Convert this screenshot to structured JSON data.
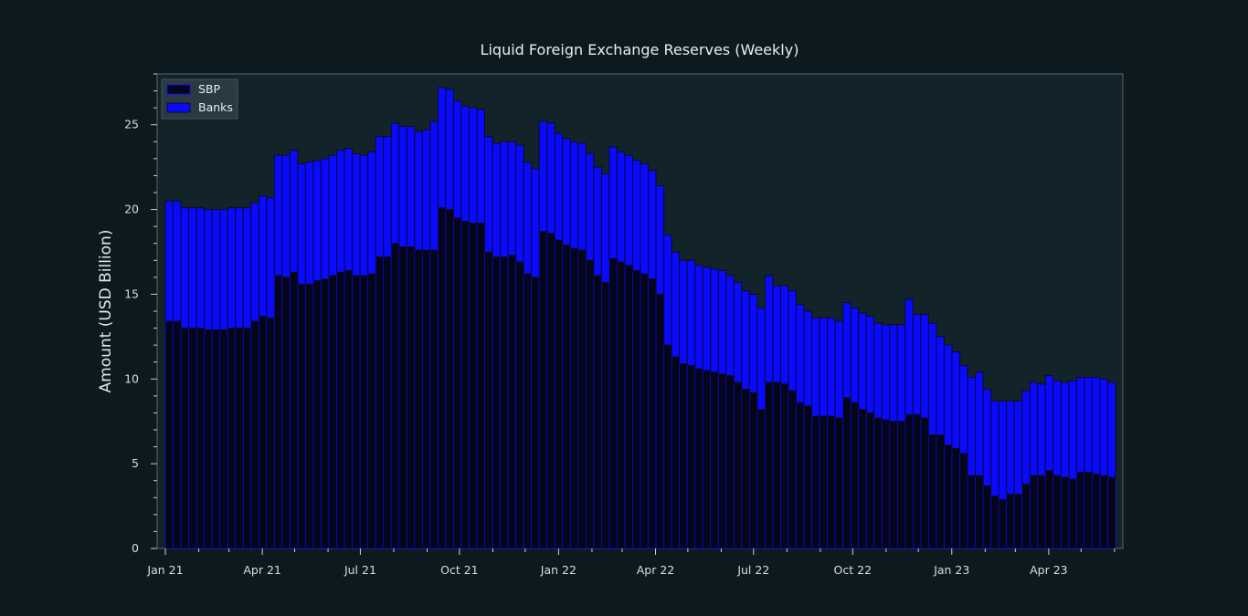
{
  "chart_data": {
    "type": "bar",
    "stacked": true,
    "title": "Liquid Foreign Exchange Reserves (Weekly)",
    "xlabel": "",
    "ylabel": "Amount (USD Billion)",
    "ylim": [
      0,
      28
    ],
    "yticks": [
      0,
      5,
      10,
      15,
      20,
      25
    ],
    "xtick_labels": [
      "Jan 21",
      "Apr 21",
      "Jul 21",
      "Oct 21",
      "Jan 22",
      "Apr 22",
      "Jul 22",
      "Oct 22",
      "Jan 23",
      "Apr 23"
    ],
    "x_start": "2021-01-01",
    "x_end": "2023-06-02",
    "legend": {
      "placement": "top-left",
      "entries": [
        "SBP",
        "Banks"
      ]
    },
    "colors": {
      "SBP": "#05051a",
      "Banks": "#0a0aff",
      "edge": "#0a0a2a",
      "background": "#0c1a20",
      "plot_background": "#13232a"
    },
    "series": [
      {
        "name": "SBP",
        "values": [
          13.4,
          13.4,
          13.0,
          13.0,
          13.0,
          12.9,
          12.9,
          12.9,
          13.0,
          13.0,
          13.0,
          13.4,
          13.7,
          13.6,
          16.1,
          16.0,
          16.3,
          15.6,
          15.6,
          15.8,
          15.9,
          16.1,
          16.3,
          16.4,
          16.1,
          16.1,
          16.2,
          17.2,
          17.2,
          18.0,
          17.8,
          17.8,
          17.6,
          17.6,
          17.6,
          20.1,
          20.0,
          19.5,
          19.3,
          19.2,
          19.2,
          17.5,
          17.2,
          17.2,
          17.3,
          16.9,
          16.2,
          16.0,
          18.7,
          18.6,
          18.2,
          17.9,
          17.7,
          17.6,
          17.0,
          16.1,
          15.7,
          17.1,
          16.9,
          16.7,
          16.4,
          16.2,
          15.9,
          15.0,
          12.0,
          11.3,
          10.9,
          10.8,
          10.6,
          10.5,
          10.4,
          10.3,
          10.2,
          9.8,
          9.4,
          9.2,
          8.2,
          9.8,
          9.8,
          9.7,
          9.3,
          8.6,
          8.4,
          7.8,
          7.8,
          7.8,
          7.7,
          8.9,
          8.6,
          8.2,
          8.0,
          7.7,
          7.6,
          7.5,
          7.5,
          7.9,
          7.9,
          7.7,
          6.7,
          6.7,
          6.1,
          5.9,
          5.6,
          4.3,
          4.3,
          3.7,
          3.1,
          2.9,
          3.2,
          3.2,
          3.8,
          4.3,
          4.3,
          4.6,
          4.3,
          4.2,
          4.1,
          4.5,
          4.5,
          4.4,
          4.3,
          4.2
        ]
      },
      {
        "name": "Banks",
        "values": [
          7.1,
          7.1,
          7.1,
          7.1,
          7.1,
          7.1,
          7.1,
          7.1,
          7.1,
          7.1,
          7.1,
          7.0,
          7.1,
          7.1,
          7.1,
          7.2,
          7.2,
          7.1,
          7.2,
          7.1,
          7.1,
          7.1,
          7.2,
          7.2,
          7.2,
          7.1,
          7.2,
          7.1,
          7.1,
          7.1,
          7.1,
          7.1,
          7.0,
          7.1,
          7.6,
          7.1,
          7.1,
          6.9,
          6.8,
          6.8,
          6.7,
          6.8,
          6.7,
          6.8,
          6.7,
          6.9,
          6.6,
          6.4,
          6.5,
          6.5,
          6.3,
          6.3,
          6.3,
          6.3,
          6.3,
          6.4,
          6.4,
          6.6,
          6.5,
          6.5,
          6.5,
          6.5,
          6.4,
          6.4,
          6.5,
          6.2,
          6.1,
          6.2,
          6.1,
          6.1,
          6.1,
          6.1,
          5.9,
          5.9,
          5.8,
          5.8,
          6.0,
          6.3,
          5.7,
          5.8,
          5.9,
          5.8,
          5.6,
          5.8,
          5.8,
          5.8,
          5.7,
          5.6,
          5.6,
          5.7,
          5.7,
          5.6,
          5.6,
          5.7,
          5.7,
          6.8,
          5.9,
          6.1,
          6.6,
          5.8,
          5.9,
          5.7,
          5.2,
          5.8,
          6.1,
          5.7,
          5.6,
          5.8,
          5.5,
          5.5,
          5.5,
          5.5,
          5.4,
          5.6,
          5.6,
          5.6,
          5.8,
          5.6,
          5.6,
          5.7,
          5.7,
          5.6
        ]
      }
    ]
  }
}
